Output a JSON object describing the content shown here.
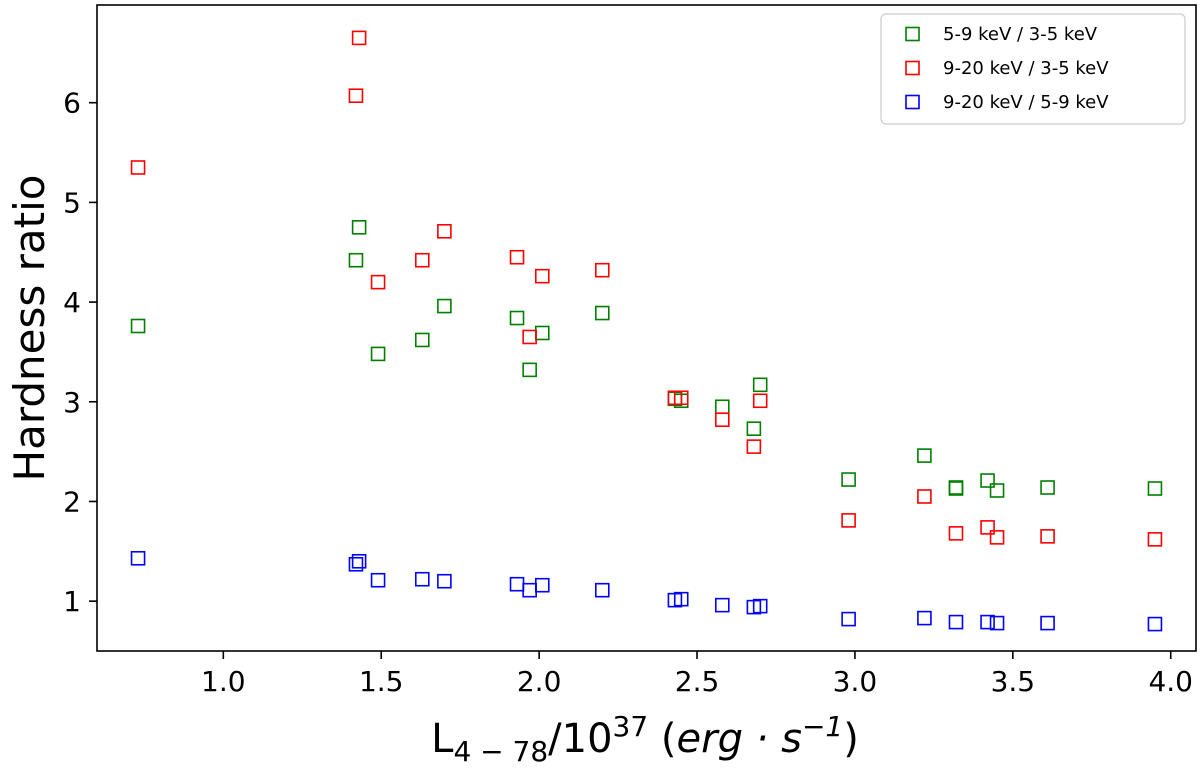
{
  "chart_data": {
    "type": "scatter",
    "marker": "square-open",
    "xlabel": {
      "base": "L",
      "subscript": "4 − 78",
      "slash": "/10",
      "superscript": "37",
      "open": " (",
      "unit_part1": "erg · s",
      "unit_sup": "−1",
      "close": ")"
    },
    "ylabel": "Hardness ratio",
    "xlim": [
      0.6,
      4.08
    ],
    "ylim": [
      0.5,
      6.98
    ],
    "xticks": [
      1.0,
      1.5,
      2.0,
      2.5,
      3.0,
      3.5,
      4.0
    ],
    "xtick_labels": [
      "1.0",
      "1.5",
      "2.0",
      "2.5",
      "3.0",
      "3.5",
      "4.0"
    ],
    "yticks": [
      1,
      2,
      3,
      4,
      5,
      6
    ],
    "ytick_labels": [
      "1",
      "2",
      "3",
      "4",
      "5",
      "6"
    ],
    "grid": false,
    "legend_position": "top-right",
    "series": [
      {
        "name": "5-9 keV / 3-5 keV",
        "color": "#008000",
        "points": [
          [
            0.73,
            3.76
          ],
          [
            1.42,
            4.42
          ],
          [
            1.43,
            4.75
          ],
          [
            1.49,
            3.48
          ],
          [
            1.63,
            3.62
          ],
          [
            1.7,
            3.96
          ],
          [
            1.93,
            3.84
          ],
          [
            1.97,
            3.32
          ],
          [
            2.01,
            3.69
          ],
          [
            2.2,
            3.89
          ],
          [
            2.43,
            3.03
          ],
          [
            2.45,
            3.01
          ],
          [
            2.58,
            2.95
          ],
          [
            2.68,
            2.73
          ],
          [
            2.7,
            3.17
          ],
          [
            2.98,
            2.22
          ],
          [
            3.22,
            2.46
          ],
          [
            3.32,
            2.13
          ],
          [
            3.32,
            2.14
          ],
          [
            3.42,
            2.21
          ],
          [
            3.45,
            2.11
          ],
          [
            3.61,
            2.14
          ],
          [
            3.95,
            2.13
          ]
        ]
      },
      {
        "name": "9-20 keV / 3-5 keV",
        "color": "#ff0000",
        "points": [
          [
            0.73,
            5.35
          ],
          [
            1.42,
            6.07
          ],
          [
            1.43,
            6.65
          ],
          [
            1.49,
            4.2
          ],
          [
            1.63,
            4.42
          ],
          [
            1.7,
            4.71
          ],
          [
            1.93,
            4.45
          ],
          [
            1.97,
            3.65
          ],
          [
            2.01,
            4.26
          ],
          [
            2.2,
            4.32
          ],
          [
            2.43,
            3.04
          ],
          [
            2.45,
            3.04
          ],
          [
            2.58,
            2.82
          ],
          [
            2.68,
            2.55
          ],
          [
            2.7,
            3.01
          ],
          [
            2.98,
            1.81
          ],
          [
            3.22,
            2.05
          ],
          [
            3.32,
            1.68
          ],
          [
            3.42,
            1.74
          ],
          [
            3.45,
            1.64
          ],
          [
            3.61,
            1.65
          ],
          [
            3.95,
            1.62
          ]
        ]
      },
      {
        "name": "9-20 keV / 5-9 keV",
        "color": "#0000ff",
        "points": [
          [
            0.73,
            1.43
          ],
          [
            1.42,
            1.37
          ],
          [
            1.43,
            1.4
          ],
          [
            1.49,
            1.21
          ],
          [
            1.63,
            1.22
          ],
          [
            1.7,
            1.2
          ],
          [
            1.93,
            1.17
          ],
          [
            1.97,
            1.11
          ],
          [
            2.01,
            1.16
          ],
          [
            2.2,
            1.11
          ],
          [
            2.43,
            1.01
          ],
          [
            2.45,
            1.02
          ],
          [
            2.58,
            0.96
          ],
          [
            2.68,
            0.94
          ],
          [
            2.7,
            0.95
          ],
          [
            2.98,
            0.82
          ],
          [
            3.22,
            0.83
          ],
          [
            3.32,
            0.79
          ],
          [
            3.42,
            0.79
          ],
          [
            3.45,
            0.78
          ],
          [
            3.61,
            0.78
          ],
          [
            3.95,
            0.77
          ]
        ]
      }
    ]
  }
}
